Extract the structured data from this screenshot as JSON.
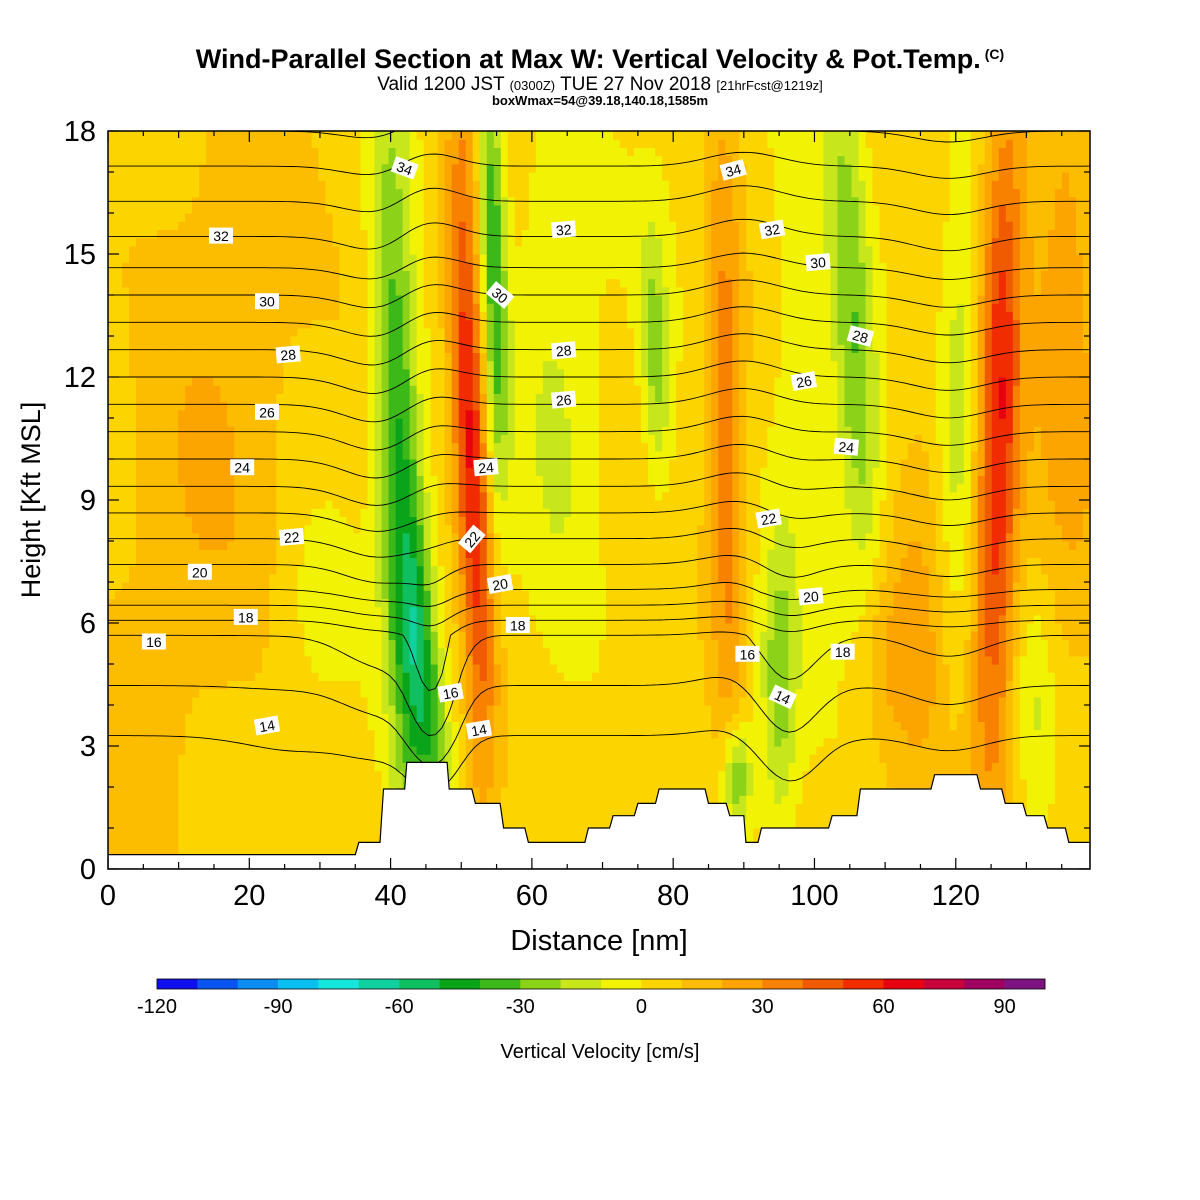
{
  "header": {
    "title": "Wind-Parallel Section at Max W: Vertical Velocity & Pot.Temp.",
    "copyright": "(C)",
    "valid_prefix": "Valid 1200 JST",
    "valid_utc": "(0300Z)",
    "valid_date": "TUE 27 Nov 2018",
    "forecast": "[21hrFcst@1219z]",
    "box_info": "boxWmax=54@39.18,140.18,1585m"
  },
  "chart_data": {
    "type": "heatmap",
    "xlabel": "Distance [nm]",
    "ylabel": "Height [Kft MSL]",
    "xlim": [
      0,
      139
    ],
    "ylim": [
      0,
      18
    ],
    "x_ticks": [
      0,
      20,
      40,
      60,
      80,
      100,
      120
    ],
    "y_ticks": [
      0,
      3,
      6,
      9,
      12,
      15,
      18
    ],
    "colorbar": {
      "label": "Vertical Velocity [cm/s]",
      "min": -120,
      "max": 100,
      "step": 10,
      "tick_values": [
        -120,
        -90,
        -60,
        -30,
        0,
        30,
        60,
        90
      ],
      "colors": [
        "#1010ee",
        "#0a55f0",
        "#0a8cf0",
        "#0ac0f0",
        "#16e6dc",
        "#10d0a0",
        "#10c060",
        "#0aa41a",
        "#3cb818",
        "#8cd218",
        "#c8e61c",
        "#f2f204",
        "#fcd400",
        "#fcbc00",
        "#fca400",
        "#f88200",
        "#f05a00",
        "#f02c00",
        "#e80010",
        "#c8003c",
        "#a00060",
        "#7c1480"
      ]
    },
    "terrain": [
      {
        "x": 0,
        "h": 0.35
      },
      {
        "x": 35,
        "h": 0.35
      },
      {
        "x": 35.5,
        "h": 0.65
      },
      {
        "x": 38.5,
        "h": 0.65
      },
      {
        "x": 39,
        "h": 1.95
      },
      {
        "x": 42,
        "h": 1.95
      },
      {
        "x": 42.3,
        "h": 2.6
      },
      {
        "x": 48,
        "h": 2.6
      },
      {
        "x": 48.3,
        "h": 1.95
      },
      {
        "x": 51.5,
        "h": 1.95
      },
      {
        "x": 52,
        "h": 1.6
      },
      {
        "x": 55.5,
        "h": 1.6
      },
      {
        "x": 56,
        "h": 1.0
      },
      {
        "x": 59,
        "h": 1.0
      },
      {
        "x": 59.5,
        "h": 0.65
      },
      {
        "x": 67.5,
        "h": 0.65
      },
      {
        "x": 68,
        "h": 1.0
      },
      {
        "x": 71,
        "h": 1.0
      },
      {
        "x": 71.5,
        "h": 1.3
      },
      {
        "x": 74.5,
        "h": 1.3
      },
      {
        "x": 75,
        "h": 1.6
      },
      {
        "x": 77.5,
        "h": 1.6
      },
      {
        "x": 78,
        "h": 1.95
      },
      {
        "x": 84.5,
        "h": 1.95
      },
      {
        "x": 85,
        "h": 1.6
      },
      {
        "x": 87.5,
        "h": 1.6
      },
      {
        "x": 88,
        "h": 1.3
      },
      {
        "x": 90,
        "h": 1.3
      },
      {
        "x": 90.3,
        "h": 0.65
      },
      {
        "x": 92,
        "h": 0.65
      },
      {
        "x": 92.5,
        "h": 1.0
      },
      {
        "x": 102,
        "h": 1.0
      },
      {
        "x": 102.5,
        "h": 1.3
      },
      {
        "x": 106,
        "h": 1.3
      },
      {
        "x": 106.5,
        "h": 1.95
      },
      {
        "x": 116.5,
        "h": 1.95
      },
      {
        "x": 117,
        "h": 2.3
      },
      {
        "x": 123,
        "h": 2.3
      },
      {
        "x": 123.5,
        "h": 1.95
      },
      {
        "x": 126.5,
        "h": 1.95
      },
      {
        "x": 127,
        "h": 1.6
      },
      {
        "x": 129.5,
        "h": 1.6
      },
      {
        "x": 130,
        "h": 1.3
      },
      {
        "x": 132.5,
        "h": 1.3
      },
      {
        "x": 133,
        "h": 1.0
      },
      {
        "x": 135.5,
        "h": 1.0
      },
      {
        "x": 136,
        "h": 0.65
      },
      {
        "x": 139,
        "h": 0.65
      }
    ],
    "w_features": [
      {
        "x0": 43,
        "x1": 40,
        "y0": 2.5,
        "y1": 16,
        "amp": -50,
        "sx": 2.2,
        "sy": 6.5
      },
      {
        "x0": 46,
        "x1": 44,
        "y0": 3,
        "y1": 6,
        "amp": -30,
        "sx": 1.8,
        "sy": 2.5
      },
      {
        "x0": 53,
        "x1": 50,
        "y0": 4.5,
        "y1": 16,
        "amp": 60,
        "sx": 1.8,
        "sy": 5.5
      },
      {
        "x0": 55,
        "x1": 54,
        "y0": 12,
        "y1": 18,
        "amp": -45,
        "sx": 1.3,
        "sy": 4.5
      },
      {
        "x0": 29,
        "x1": 29,
        "y0": 5,
        "y1": 8,
        "amp": -10,
        "sx": 4,
        "sy": 2
      },
      {
        "x0": 15,
        "x1": 20,
        "y0": 10,
        "y1": 18,
        "amp": 14,
        "sx": 8,
        "sy": 6
      },
      {
        "x0": 0,
        "x1": 10,
        "y0": 2,
        "y1": 10,
        "amp": 8,
        "sx": 8,
        "sy": 5
      },
      {
        "x0": 65,
        "x1": 62,
        "y0": 6,
        "y1": 18,
        "amp": -14,
        "sx": 4,
        "sy": 5
      },
      {
        "x0": 78,
        "x1": 77,
        "y0": 10,
        "y1": 15,
        "amp": -28,
        "sx": 1.4,
        "sy": 2.2
      },
      {
        "x0": 88,
        "x1": 87,
        "y0": 3,
        "y1": 18,
        "amp": 32,
        "sx": 1.8,
        "sy": 6
      },
      {
        "x0": 89,
        "x1": 89,
        "y0": 1.5,
        "y1": 3,
        "amp": -40,
        "sx": 1.5,
        "sy": 1.0
      },
      {
        "x0": 95,
        "x1": 95,
        "y0": 2,
        "y1": 7,
        "amp": -28,
        "sx": 1.8,
        "sy": 2.5
      },
      {
        "x0": 98,
        "x1": 97,
        "y0": 9,
        "y1": 16,
        "amp": -12,
        "sx": 3,
        "sy": 4
      },
      {
        "x0": 107,
        "x1": 104,
        "y0": 8,
        "y1": 18,
        "amp": -34,
        "sx": 2.2,
        "sy": 5
      },
      {
        "x0": 109,
        "x1": 109,
        "y0": 4,
        "y1": 6,
        "amp": 16,
        "sx": 3,
        "sy": 2
      },
      {
        "x0": 115,
        "x1": 115,
        "y0": 3,
        "y1": 10,
        "amp": 18,
        "sx": 3,
        "sy": 4
      },
      {
        "x0": 120,
        "x1": 121,
        "y0": 6,
        "y1": 18,
        "amp": -18,
        "sx": 2,
        "sy": 5
      },
      {
        "x0": 125,
        "x1": 127,
        "y0": 3,
        "y1": 18,
        "amp": 56,
        "sx": 2.2,
        "sy": 6
      },
      {
        "x0": 131,
        "x1": 131,
        "y0": 2,
        "y1": 6,
        "amp": -16,
        "sx": 2,
        "sy": 2
      },
      {
        "x0": 136,
        "x1": 135,
        "y0": 10,
        "y1": 18,
        "amp": 24,
        "sx": 4,
        "sy": 5
      }
    ],
    "theta_levels": [
      14,
      15,
      16,
      17,
      18,
      19,
      20,
      21,
      22,
      23,
      24,
      25,
      26,
      27,
      28,
      29,
      30,
      31,
      32,
      33,
      34,
      35,
      36
    ],
    "theta_profile": [
      {
        "z": 0,
        "t": 11
      },
      {
        "z": 3.25,
        "t": 14
      },
      {
        "z": 5.7,
        "t": 16
      },
      {
        "z": 6.8,
        "t": 19
      },
      {
        "z": 9,
        "t": 22.5
      },
      {
        "z": 12,
        "t": 27
      },
      {
        "z": 15,
        "t": 31.5
      },
      {
        "z": 18,
        "t": 35
      },
      {
        "z": 21,
        "t": 38
      }
    ],
    "theta_displacements": [
      {
        "x": 46,
        "z": 4,
        "amp": -2.0,
        "sx": 3,
        "sz": 2
      },
      {
        "x": 39,
        "z": 9,
        "amp": -0.8,
        "sx": 5,
        "sz": 6
      },
      {
        "x": 45,
        "z": 14,
        "amp": 0.6,
        "sx": 4,
        "sz": 5
      },
      {
        "x": 26,
        "z": 1.5,
        "amp": -0.5,
        "sx": 7,
        "sz": 1.5
      },
      {
        "x": 98,
        "z": 1.2,
        "amp": -0.5,
        "sx": 6,
        "sz": 1.2
      },
      {
        "x": 96,
        "z": 4.5,
        "amp": -1.0,
        "sx": 4,
        "sz": 3
      },
      {
        "x": 90,
        "z": 12,
        "amp": 0.6,
        "sx": 5,
        "sz": 6
      },
      {
        "x": 119,
        "z": 10,
        "amp": -0.5,
        "sx": 5,
        "sz": 8
      }
    ],
    "contour_labels": [
      {
        "v": "34",
        "x": 42,
        "y": 17.1,
        "rot": 20
      },
      {
        "v": "32",
        "x": 16,
        "y": 15.45,
        "rot": 0
      },
      {
        "v": "30",
        "x": 22.5,
        "y": 13.85,
        "rot": 0
      },
      {
        "v": "28",
        "x": 25.5,
        "y": 12.55,
        "rot": -5
      },
      {
        "v": "26",
        "x": 22.5,
        "y": 11.15,
        "rot": 0
      },
      {
        "v": "24",
        "x": 19,
        "y": 9.8,
        "rot": 0
      },
      {
        "v": "22",
        "x": 26,
        "y": 8.1,
        "rot": -5
      },
      {
        "v": "20",
        "x": 13,
        "y": 7.25,
        "rot": 0
      },
      {
        "v": "18",
        "x": 19.5,
        "y": 6.15,
        "rot": 0
      },
      {
        "v": "16",
        "x": 6.5,
        "y": 5.55,
        "rot": 0
      },
      {
        "v": "14",
        "x": 22.5,
        "y": 3.5,
        "rot": -10
      },
      {
        "v": "30",
        "x": 55.5,
        "y": 14,
        "rot": 40
      },
      {
        "v": "24",
        "x": 53.5,
        "y": 9.8,
        "rot": -5
      },
      {
        "v": "22",
        "x": 51.5,
        "y": 8.05,
        "rot": -50
      },
      {
        "v": "20",
        "x": 55.5,
        "y": 6.95,
        "rot": -10
      },
      {
        "v": "18",
        "x": 58,
        "y": 5.95,
        "rot": 0
      },
      {
        "v": "16",
        "x": 48.5,
        "y": 4.3,
        "rot": -10
      },
      {
        "v": "14",
        "x": 52.5,
        "y": 3.4,
        "rot": -10
      },
      {
        "v": "32",
        "x": 64.5,
        "y": 15.6,
        "rot": -5
      },
      {
        "v": "28",
        "x": 64.5,
        "y": 12.65,
        "rot": -5
      },
      {
        "v": "26",
        "x": 64.5,
        "y": 11.45,
        "rot": -5
      },
      {
        "v": "34",
        "x": 88.5,
        "y": 17.05,
        "rot": -15
      },
      {
        "v": "32",
        "x": 94,
        "y": 15.6,
        "rot": -10
      },
      {
        "v": "30",
        "x": 100.5,
        "y": 14.8,
        "rot": -5
      },
      {
        "v": "26",
        "x": 98.5,
        "y": 11.9,
        "rot": -10
      },
      {
        "v": "28",
        "x": 106.5,
        "y": 13,
        "rot": 15
      },
      {
        "v": "24",
        "x": 104.5,
        "y": 10.3,
        "rot": 5
      },
      {
        "v": "22",
        "x": 93.5,
        "y": 8.55,
        "rot": -10
      },
      {
        "v": "20",
        "x": 99.5,
        "y": 6.65,
        "rot": -5
      },
      {
        "v": "18",
        "x": 104,
        "y": 5.3,
        "rot": 0
      },
      {
        "v": "16",
        "x": 90.5,
        "y": 5.25,
        "rot": 0
      },
      {
        "v": "14",
        "x": 95.5,
        "y": 4.2,
        "rot": 25
      }
    ]
  }
}
